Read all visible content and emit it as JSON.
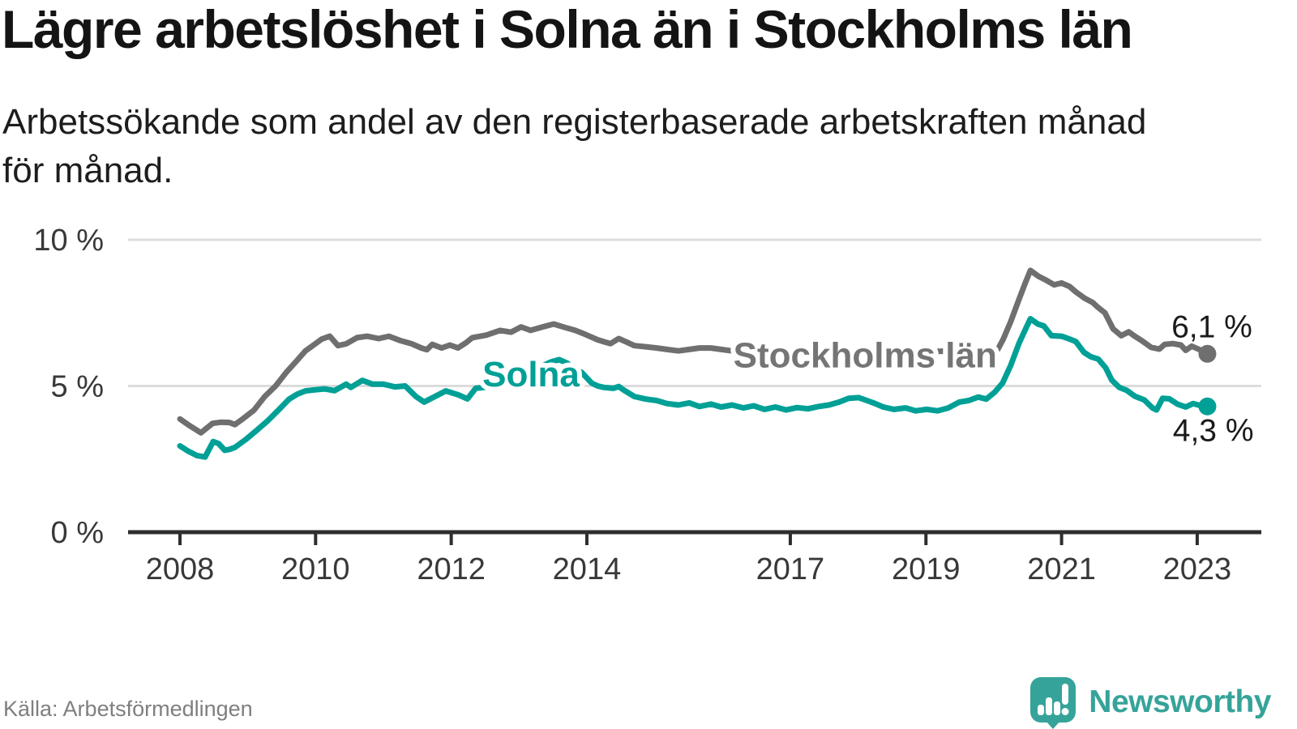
{
  "footer": {
    "source": "Källa: Arbetsförmedlingen",
    "brand_name": "Newsworthy"
  },
  "colors": {
    "solna": "#00a096",
    "stockholm": "#6f6f6f",
    "stockholm_label": "#757575",
    "grid": "#dcdcdc",
    "axis": "#2e2e2e",
    "tick_text": "#383838",
    "value_text": "#1a1a1a",
    "halo": "#ffffff",
    "brand": "#36a39a"
  },
  "chart_data": {
    "type": "line",
    "title": "Lägre arbetslöshet i Solna än i Stockholms län",
    "subtitle": "Arbetssökande som andel av den registerbaserade arbetskraften månad för månad.",
    "subtitle_lines": [
      "Arbetssökande som andel av den registerbaserade arbetskraften månad",
      "för månad."
    ],
    "xlabel": "",
    "ylabel": "",
    "x_unit": "decimal_year",
    "xlim": [
      2007.23,
      2023.94
    ],
    "ylim": [
      0,
      11.2
    ],
    "grid": "horizontal",
    "legend_position": "inline-labels",
    "yticks": [
      {
        "v": 0,
        "label": "0 %"
      },
      {
        "v": 5,
        "label": "5 %"
      },
      {
        "v": 10,
        "label": "10 %"
      }
    ],
    "xticks": [
      {
        "v": 2008,
        "label": "2008"
      },
      {
        "v": 2010,
        "label": "2010"
      },
      {
        "v": 2012,
        "label": "2012"
      },
      {
        "v": 2014,
        "label": "2014"
      },
      {
        "v": 2017,
        "label": "2017"
      },
      {
        "v": 2019,
        "label": "2019"
      },
      {
        "v": 2021,
        "label": "2021"
      },
      {
        "v": 2023,
        "label": "2023"
      }
    ],
    "series": [
      {
        "name": "Stockholms län",
        "color": "#6f6f6f",
        "label_color": "#757575",
        "latest_value": 6.1,
        "end_annotation": {
          "text": "6,1 %",
          "year": 2022.62,
          "value": 6.66
        },
        "inline_label": {
          "text": "Stockholms län",
          "year": 2016.16,
          "value": 5.64
        },
        "points": [
          [
            2008.0,
            3.87
          ],
          [
            2008.13,
            3.66
          ],
          [
            2008.31,
            3.4
          ],
          [
            2008.48,
            3.72
          ],
          [
            2008.6,
            3.76
          ],
          [
            2008.73,
            3.75
          ],
          [
            2008.81,
            3.68
          ],
          [
            2008.93,
            3.88
          ],
          [
            2009.09,
            4.17
          ],
          [
            2009.25,
            4.64
          ],
          [
            2009.41,
            5.0
          ],
          [
            2009.57,
            5.47
          ],
          [
            2009.73,
            5.88
          ],
          [
            2009.85,
            6.2
          ],
          [
            2010.0,
            6.45
          ],
          [
            2010.09,
            6.6
          ],
          [
            2010.21,
            6.7
          ],
          [
            2010.33,
            6.38
          ],
          [
            2010.45,
            6.44
          ],
          [
            2010.61,
            6.65
          ],
          [
            2010.76,
            6.7
          ],
          [
            2010.93,
            6.62
          ],
          [
            2011.08,
            6.7
          ],
          [
            2011.24,
            6.56
          ],
          [
            2011.41,
            6.45
          ],
          [
            2011.56,
            6.3
          ],
          [
            2011.64,
            6.24
          ],
          [
            2011.72,
            6.42
          ],
          [
            2011.86,
            6.3
          ],
          [
            2011.98,
            6.4
          ],
          [
            2012.1,
            6.3
          ],
          [
            2012.22,
            6.48
          ],
          [
            2012.31,
            6.65
          ],
          [
            2012.52,
            6.74
          ],
          [
            2012.72,
            6.9
          ],
          [
            2012.88,
            6.84
          ],
          [
            2013.03,
            7.02
          ],
          [
            2013.17,
            6.9
          ],
          [
            2013.32,
            7.0
          ],
          [
            2013.51,
            7.12
          ],
          [
            2013.68,
            7.0
          ],
          [
            2013.83,
            6.9
          ],
          [
            2013.99,
            6.75
          ],
          [
            2014.16,
            6.58
          ],
          [
            2014.27,
            6.5
          ],
          [
            2014.35,
            6.45
          ],
          [
            2014.47,
            6.62
          ],
          [
            2014.59,
            6.5
          ],
          [
            2014.7,
            6.38
          ],
          [
            2014.87,
            6.34
          ],
          [
            2015.03,
            6.3
          ],
          [
            2015.18,
            6.25
          ],
          [
            2015.35,
            6.2
          ],
          [
            2015.51,
            6.25
          ],
          [
            2015.66,
            6.3
          ],
          [
            2015.83,
            6.3
          ],
          [
            2015.98,
            6.25
          ],
          [
            2016.14,
            6.2
          ],
          [
            2016.46,
            6.22
          ],
          [
            2016.82,
            6.18
          ],
          [
            2017.18,
            6.24
          ],
          [
            2017.54,
            6.18
          ],
          [
            2017.9,
            6.22
          ],
          [
            2018.25,
            6.16
          ],
          [
            2018.61,
            6.2
          ],
          [
            2018.97,
            6.16
          ],
          [
            2019.33,
            6.2
          ],
          [
            2019.69,
            6.18
          ],
          [
            2019.93,
            6.2
          ],
          [
            2020.06,
            6.25
          ],
          [
            2020.14,
            6.6
          ],
          [
            2020.25,
            7.2
          ],
          [
            2020.37,
            7.95
          ],
          [
            2020.47,
            8.55
          ],
          [
            2020.54,
            8.95
          ],
          [
            2020.66,
            8.75
          ],
          [
            2020.77,
            8.62
          ],
          [
            2020.89,
            8.46
          ],
          [
            2021.0,
            8.52
          ],
          [
            2021.12,
            8.4
          ],
          [
            2021.21,
            8.22
          ],
          [
            2021.34,
            8.0
          ],
          [
            2021.46,
            7.85
          ],
          [
            2021.53,
            7.7
          ],
          [
            2021.64,
            7.5
          ],
          [
            2021.76,
            6.95
          ],
          [
            2021.88,
            6.72
          ],
          [
            2021.99,
            6.85
          ],
          [
            2022.08,
            6.7
          ],
          [
            2022.2,
            6.52
          ],
          [
            2022.32,
            6.32
          ],
          [
            2022.44,
            6.26
          ],
          [
            2022.52,
            6.42
          ],
          [
            2022.64,
            6.45
          ],
          [
            2022.76,
            6.4
          ],
          [
            2022.83,
            6.22
          ],
          [
            2022.92,
            6.36
          ],
          [
            2023.03,
            6.25
          ],
          [
            2023.15,
            6.1
          ]
        ]
      },
      {
        "name": "Solna",
        "color": "#00a096",
        "label_color": "#00a096",
        "latest_value": 4.3,
        "end_annotation": {
          "text": "4,3 %",
          "year": 2022.64,
          "value": 3.12
        },
        "inline_label": {
          "text": "Solna",
          "year": 2012.46,
          "value": 4.98
        },
        "points": [
          [
            2008.0,
            2.95
          ],
          [
            2008.13,
            2.76
          ],
          [
            2008.25,
            2.62
          ],
          [
            2008.37,
            2.57
          ],
          [
            2008.49,
            3.1
          ],
          [
            2008.57,
            3.03
          ],
          [
            2008.66,
            2.8
          ],
          [
            2008.73,
            2.83
          ],
          [
            2008.81,
            2.9
          ],
          [
            2008.97,
            3.17
          ],
          [
            2009.13,
            3.48
          ],
          [
            2009.29,
            3.8
          ],
          [
            2009.45,
            4.17
          ],
          [
            2009.61,
            4.55
          ],
          [
            2009.73,
            4.72
          ],
          [
            2009.85,
            4.83
          ],
          [
            2010.0,
            4.87
          ],
          [
            2010.13,
            4.9
          ],
          [
            2010.28,
            4.84
          ],
          [
            2010.45,
            5.06
          ],
          [
            2010.52,
            4.95
          ],
          [
            2010.69,
            5.19
          ],
          [
            2010.84,
            5.06
          ],
          [
            2011.0,
            5.06
          ],
          [
            2011.17,
            4.97
          ],
          [
            2011.32,
            5.0
          ],
          [
            2011.48,
            4.64
          ],
          [
            2011.6,
            4.45
          ],
          [
            2011.76,
            4.64
          ],
          [
            2011.92,
            4.83
          ],
          [
            2012.1,
            4.7
          ],
          [
            2012.24,
            4.56
          ],
          [
            2012.36,
            4.92
          ],
          [
            2012.55,
            4.97
          ],
          [
            2012.75,
            5.08
          ],
          [
            2012.95,
            5.18
          ],
          [
            2013.12,
            5.42
          ],
          [
            2013.32,
            5.66
          ],
          [
            2013.47,
            5.82
          ],
          [
            2013.59,
            5.9
          ],
          [
            2013.71,
            5.78
          ],
          [
            2013.83,
            5.55
          ],
          [
            2013.92,
            5.47
          ],
          [
            2014.07,
            5.1
          ],
          [
            2014.16,
            5.0
          ],
          [
            2014.25,
            4.95
          ],
          [
            2014.39,
            4.92
          ],
          [
            2014.47,
            4.98
          ],
          [
            2014.55,
            4.85
          ],
          [
            2014.7,
            4.64
          ],
          [
            2014.87,
            4.55
          ],
          [
            2015.03,
            4.5
          ],
          [
            2015.18,
            4.4
          ],
          [
            2015.35,
            4.35
          ],
          [
            2015.51,
            4.42
          ],
          [
            2015.66,
            4.3
          ],
          [
            2015.83,
            4.38
          ],
          [
            2015.98,
            4.28
          ],
          [
            2016.14,
            4.35
          ],
          [
            2016.31,
            4.25
          ],
          [
            2016.46,
            4.32
          ],
          [
            2016.62,
            4.2
          ],
          [
            2016.78,
            4.28
          ],
          [
            2016.94,
            4.18
          ],
          [
            2017.1,
            4.26
          ],
          [
            2017.26,
            4.22
          ],
          [
            2017.42,
            4.3
          ],
          [
            2017.57,
            4.35
          ],
          [
            2017.72,
            4.45
          ],
          [
            2017.86,
            4.58
          ],
          [
            2018.01,
            4.6
          ],
          [
            2018.13,
            4.5
          ],
          [
            2018.25,
            4.4
          ],
          [
            2018.37,
            4.28
          ],
          [
            2018.53,
            4.2
          ],
          [
            2018.7,
            4.25
          ],
          [
            2018.85,
            4.15
          ],
          [
            2019.01,
            4.2
          ],
          [
            2019.17,
            4.15
          ],
          [
            2019.33,
            4.25
          ],
          [
            2019.49,
            4.45
          ],
          [
            2019.63,
            4.5
          ],
          [
            2019.77,
            4.62
          ],
          [
            2019.89,
            4.55
          ],
          [
            2020.01,
            4.78
          ],
          [
            2020.13,
            5.1
          ],
          [
            2020.25,
            5.7
          ],
          [
            2020.37,
            6.45
          ],
          [
            2020.47,
            6.95
          ],
          [
            2020.54,
            7.3
          ],
          [
            2020.65,
            7.12
          ],
          [
            2020.74,
            7.05
          ],
          [
            2020.85,
            6.72
          ],
          [
            2021.0,
            6.7
          ],
          [
            2021.1,
            6.62
          ],
          [
            2021.21,
            6.52
          ],
          [
            2021.33,
            6.15
          ],
          [
            2021.43,
            6.0
          ],
          [
            2021.54,
            5.92
          ],
          [
            2021.65,
            5.62
          ],
          [
            2021.74,
            5.2
          ],
          [
            2021.85,
            4.95
          ],
          [
            2021.96,
            4.85
          ],
          [
            2022.08,
            4.65
          ],
          [
            2022.22,
            4.52
          ],
          [
            2022.34,
            4.25
          ],
          [
            2022.4,
            4.18
          ],
          [
            2022.49,
            4.58
          ],
          [
            2022.59,
            4.56
          ],
          [
            2022.71,
            4.38
          ],
          [
            2022.83,
            4.28
          ],
          [
            2022.94,
            4.4
          ],
          [
            2023.05,
            4.33
          ],
          [
            2023.15,
            4.3
          ]
        ]
      }
    ]
  }
}
